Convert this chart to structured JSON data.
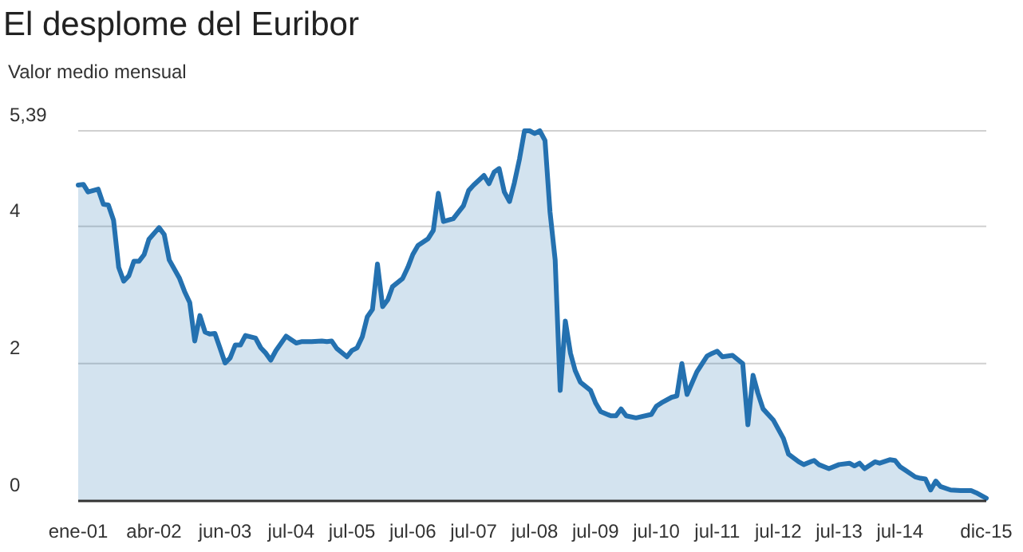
{
  "chart_data": {
    "type": "area",
    "title": "El desplome del Euribor",
    "subtitle": "Valor medio mensual",
    "x": [
      "2001-01",
      "2001-02",
      "2001-03",
      "2001-05",
      "2001-06",
      "2001-07",
      "2001-08",
      "2001-09",
      "2001-10",
      "2001-11",
      "2001-12",
      "2002-01",
      "2002-02",
      "2002-03",
      "2002-05",
      "2002-06",
      "2002-07",
      "2002-09",
      "2002-10",
      "2002-11",
      "2002-12",
      "2003-01",
      "2003-02",
      "2003-03",
      "2003-04",
      "2003-05",
      "2003-06",
      "2003-07",
      "2003-08",
      "2003-09",
      "2003-10",
      "2003-12",
      "2004-01",
      "2004-02",
      "2004-03",
      "2004-04",
      "2004-06",
      "2004-07",
      "2004-08",
      "2004-09",
      "2004-11",
      "2005-01",
      "2005-02",
      "2005-03",
      "2005-04",
      "2005-06",
      "2005-07",
      "2005-08",
      "2005-09",
      "2005-10",
      "2005-11",
      "2005-12",
      "2006-01",
      "2006-02",
      "2006-03",
      "2006-05",
      "2006-06",
      "2006-07",
      "2006-08",
      "2006-10",
      "2006-11",
      "2006-12",
      "2007-01",
      "2007-03",
      "2007-05",
      "2007-06",
      "2007-07",
      "2007-09",
      "2007-10",
      "2007-11",
      "2007-12",
      "2008-01",
      "2008-02",
      "2008-03",
      "2008-04",
      "2008-05",
      "2008-06",
      "2008-07",
      "2008-08",
      "2008-09",
      "2008-10",
      "2008-11",
      "2008-12",
      "2009-01",
      "2009-02",
      "2009-03",
      "2009-04",
      "2009-06",
      "2009-07",
      "2009-08",
      "2009-10",
      "2009-11",
      "2009-12",
      "2010-01",
      "2010-03",
      "2010-06",
      "2010-07",
      "2010-08",
      "2010-10",
      "2010-11",
      "2010-12",
      "2011-01",
      "2011-03",
      "2011-05",
      "2011-06",
      "2011-07",
      "2011-08",
      "2011-10",
      "2011-12",
      "2012-01",
      "2012-02",
      "2012-03",
      "2012-04",
      "2012-06",
      "2012-08",
      "2012-09",
      "2012-11",
      "2012-12",
      "2013-02",
      "2013-03",
      "2013-05",
      "2013-07",
      "2013-09",
      "2013-10",
      "2013-11",
      "2013-12",
      "2014-02",
      "2014-03",
      "2014-05",
      "2014-06",
      "2014-07",
      "2014-08",
      "2014-10",
      "2014-11",
      "2014-12",
      "2015-01",
      "2015-02",
      "2015-03",
      "2015-05",
      "2015-07",
      "2015-09",
      "2015-10",
      "2015-12"
    ],
    "values": [
      4.6,
      4.61,
      4.5,
      4.54,
      4.32,
      4.31,
      4.09,
      3.4,
      3.2,
      3.28,
      3.49,
      3.49,
      3.59,
      3.81,
      3.98,
      3.88,
      3.51,
      3.24,
      3.05,
      2.89,
      2.33,
      2.7,
      2.46,
      2.43,
      2.44,
      2.23,
      2.01,
      2.08,
      2.27,
      2.27,
      2.41,
      2.37,
      2.23,
      2.15,
      2.05,
      2.19,
      2.4,
      2.35,
      2.3,
      2.32,
      2.32,
      2.33,
      2.32,
      2.33,
      2.22,
      2.1,
      2.19,
      2.23,
      2.39,
      2.68,
      2.79,
      3.45,
      2.83,
      2.93,
      3.12,
      3.24,
      3.4,
      3.59,
      3.72,
      3.82,
      3.94,
      4.48,
      4.07,
      4.11,
      4.3,
      4.52,
      4.6,
      4.74,
      4.62,
      4.79,
      4.84,
      4.5,
      4.36,
      4.63,
      4.98,
      5.39,
      5.39,
      5.35,
      5.39,
      5.25,
      4.21,
      3.51,
      1.61,
      2.62,
      2.15,
      1.9,
      1.73,
      1.61,
      1.43,
      1.3,
      1.24,
      1.24,
      1.34,
      1.24,
      1.21,
      1.26,
      1.38,
      1.43,
      1.51,
      1.53,
      2.0,
      1.55,
      1.88,
      2.11,
      2.15,
      2.18,
      2.1,
      2.12,
      2.0,
      1.11,
      1.83,
      1.57,
      1.34,
      1.18,
      0.91,
      0.68,
      0.57,
      0.53,
      0.59,
      0.53,
      0.47,
      0.53,
      0.55,
      0.51,
      0.55,
      0.47,
      0.57,
      0.55,
      0.6,
      0.59,
      0.5,
      0.45,
      0.35,
      0.33,
      0.32,
      0.16,
      0.29,
      0.21,
      0.16,
      0.15,
      0.15,
      0.12,
      0.04
    ],
    "color": "#2471b0",
    "xlim": [
      "2001-01",
      "2015-12"
    ],
    "xticks": [
      {
        "value": "2001-01",
        "label": "ene-01"
      },
      {
        "value": "2002-04",
        "label": "abr-02"
      },
      {
        "value": "2003-06",
        "label": "jun-03"
      },
      {
        "value": "2004-07",
        "label": "jul-04"
      },
      {
        "value": "2005-07",
        "label": "jul-05"
      },
      {
        "value": "2006-07",
        "label": "jul-06"
      },
      {
        "value": "2007-07",
        "label": "jul-07"
      },
      {
        "value": "2008-07",
        "label": "jul-08"
      },
      {
        "value": "2009-07",
        "label": "jul-09"
      },
      {
        "value": "2010-07",
        "label": "jul-10"
      },
      {
        "value": "2011-07",
        "label": "jul-11"
      },
      {
        "value": "2012-07",
        "label": "jul-12"
      },
      {
        "value": "2013-07",
        "label": "jul-13"
      },
      {
        "value": "2014-07",
        "label": "jul-14"
      },
      {
        "value": "2015-12",
        "label": "dic-15"
      }
    ],
    "ylim": [
      0,
      5.39
    ],
    "yticks": [
      0,
      2,
      4,
      {
        "value": 5.39,
        "label": "5,39"
      }
    ],
    "grid": "y"
  }
}
